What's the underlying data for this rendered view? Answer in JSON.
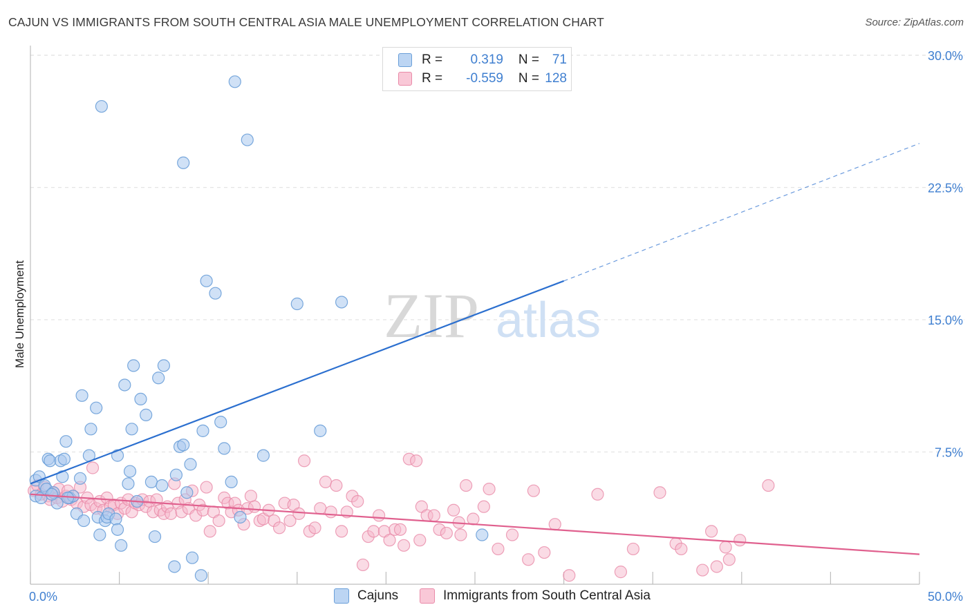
{
  "title": "CAJUN VS IMMIGRANTS FROM SOUTH CENTRAL ASIA MALE UNEMPLOYMENT CORRELATION CHART",
  "source": "Source: ZipAtlas.com",
  "watermark": {
    "zip": "ZIP",
    "atlas": "atlas"
  },
  "legend_top": {
    "rows": [
      {
        "r_label": "R =",
        "r_value": "0.319",
        "n_label": "N =",
        "n_value": "71"
      },
      {
        "r_label": "R =",
        "r_value": "-0.559",
        "n_label": "N =",
        "n_value": "128"
      }
    ]
  },
  "colors": {
    "blue_fill": "#a9c8ef",
    "blue_stroke": "#6a9fd8",
    "blue_line": "#2b6fcf",
    "pink_fill": "#f6b8cc",
    "pink_stroke": "#e98aa8",
    "pink_line": "#e0608e",
    "tick_text": "#3f7fd0",
    "grid": "#e3e3e3"
  },
  "chart_data": {
    "type": "scatter",
    "title": "CAJUN VS IMMIGRANTS FROM SOUTH CENTRAL ASIA MALE UNEMPLOYMENT CORRELATION CHART",
    "xlabel": "",
    "ylabel": "Male Unemployment",
    "xlim": [
      0,
      50
    ],
    "ylim": [
      0,
      30
    ],
    "x_ticks": [
      "0.0%",
      "50.0%"
    ],
    "y_ticks": [
      "7.5%",
      "15.0%",
      "22.5%",
      "30.0%"
    ],
    "y_tick_values": [
      7.5,
      15,
      22.5,
      30
    ],
    "grid": "horizontal dashed",
    "legend_placement": "top-center and bottom",
    "series": [
      {
        "name": "Cajuns",
        "R": 0.319,
        "N": 71,
        "trend": {
          "x0": 0,
          "y0": 5.7,
          "x1": 30,
          "y1": 17.2,
          "x_dash_end": 50,
          "y_dash_end": 25.0
        },
        "points": [
          [
            0.3,
            5.9
          ],
          [
            0.3,
            5.0
          ],
          [
            0.5,
            6.1
          ],
          [
            0.6,
            4.9
          ],
          [
            0.8,
            5.6
          ],
          [
            0.9,
            5.4
          ],
          [
            1.0,
            7.1
          ],
          [
            1.1,
            7.0
          ],
          [
            1.3,
            5.2
          ],
          [
            1.5,
            4.6
          ],
          [
            1.7,
            7.0
          ],
          [
            1.8,
            6.1
          ],
          [
            1.9,
            7.1
          ],
          [
            2.0,
            8.1
          ],
          [
            2.2,
            4.9
          ],
          [
            2.4,
            5.0
          ],
          [
            2.6,
            4.0
          ],
          [
            2.8,
            6.0
          ],
          [
            2.9,
            10.7
          ],
          [
            3.0,
            3.6
          ],
          [
            3.3,
            7.3
          ],
          [
            3.4,
            8.8
          ],
          [
            3.7,
            10.0
          ],
          [
            3.8,
            3.8
          ],
          [
            3.9,
            2.8
          ],
          [
            4.2,
            3.6
          ],
          [
            4.3,
            3.8
          ],
          [
            4.4,
            4.0
          ],
          [
            4.8,
            3.7
          ],
          [
            4.9,
            3.1
          ],
          [
            4.9,
            7.3
          ],
          [
            5.1,
            2.2
          ],
          [
            5.3,
            11.3
          ],
          [
            5.5,
            5.7
          ],
          [
            5.6,
            6.4
          ],
          [
            5.7,
            8.8
          ],
          [
            5.8,
            12.4
          ],
          [
            6.0,
            4.7
          ],
          [
            6.2,
            10.5
          ],
          [
            6.5,
            9.6
          ],
          [
            6.8,
            5.8
          ],
          [
            7.0,
            2.7
          ],
          [
            7.2,
            11.7
          ],
          [
            7.4,
            5.6
          ],
          [
            7.5,
            12.4
          ],
          [
            8.1,
            1.0
          ],
          [
            8.2,
            6.2
          ],
          [
            8.4,
            7.8
          ],
          [
            8.6,
            7.9
          ],
          [
            8.6,
            23.9
          ],
          [
            8.8,
            5.2
          ],
          [
            9.0,
            6.8
          ],
          [
            9.1,
            1.5
          ],
          [
            9.6,
            0.5
          ],
          [
            9.7,
            8.7
          ],
          [
            9.9,
            17.2
          ],
          [
            10.4,
            16.5
          ],
          [
            10.7,
            9.2
          ],
          [
            10.9,
            7.7
          ],
          [
            11.3,
            5.8
          ],
          [
            11.5,
            28.5
          ],
          [
            11.8,
            3.8
          ],
          [
            12.2,
            25.2
          ],
          [
            13.1,
            7.3
          ],
          [
            15.0,
            15.9
          ],
          [
            16.3,
            8.7
          ],
          [
            17.5,
            16.0
          ],
          [
            25.4,
            2.8
          ],
          [
            4.0,
            27.1
          ],
          [
            2.1,
            4.9
          ],
          [
            1.2,
            5.1
          ]
        ]
      },
      {
        "name": "Immigrants from South Central Asia",
        "R": -0.559,
        "N": 128,
        "trend": {
          "x0": 0,
          "y0": 5.1,
          "x1": 50,
          "y1": 1.7
        },
        "points": [
          [
            0.2,
            5.3
          ],
          [
            0.4,
            5.6
          ],
          [
            0.6,
            5.1
          ],
          [
            0.8,
            5.5
          ],
          [
            1.0,
            5.0
          ],
          [
            1.1,
            4.8
          ],
          [
            1.3,
            5.2
          ],
          [
            1.5,
            4.9
          ],
          [
            1.6,
            5.4
          ],
          [
            1.8,
            4.7
          ],
          [
            2.0,
            5.0
          ],
          [
            2.1,
            5.3
          ],
          [
            2.3,
            4.8
          ],
          [
            2.4,
            5.0
          ],
          [
            2.6,
            4.6
          ],
          [
            2.8,
            5.5
          ],
          [
            3.0,
            4.4
          ],
          [
            3.2,
            4.9
          ],
          [
            3.4,
            4.5
          ],
          [
            3.5,
            6.6
          ],
          [
            3.7,
            4.3
          ],
          [
            3.9,
            4.7
          ],
          [
            4.1,
            4.2
          ],
          [
            4.3,
            4.9
          ],
          [
            4.5,
            4.4
          ],
          [
            4.7,
            4.5
          ],
          [
            4.9,
            4.0
          ],
          [
            5.1,
            4.6
          ],
          [
            5.3,
            4.3
          ],
          [
            5.5,
            4.8
          ],
          [
            5.7,
            4.1
          ],
          [
            5.9,
            4.6
          ],
          [
            6.1,
            4.5
          ],
          [
            6.3,
            4.8
          ],
          [
            6.5,
            4.4
          ],
          [
            6.7,
            4.7
          ],
          [
            6.9,
            4.1
          ],
          [
            7.1,
            4.8
          ],
          [
            7.3,
            4.2
          ],
          [
            7.5,
            4.0
          ],
          [
            7.7,
            4.4
          ],
          [
            7.9,
            4.0
          ],
          [
            8.1,
            5.7
          ],
          [
            8.3,
            4.6
          ],
          [
            8.5,
            4.1
          ],
          [
            8.7,
            4.8
          ],
          [
            8.9,
            4.3
          ],
          [
            9.1,
            5.3
          ],
          [
            9.3,
            3.9
          ],
          [
            9.5,
            4.5
          ],
          [
            9.7,
            4.2
          ],
          [
            9.9,
            5.5
          ],
          [
            10.1,
            3.0
          ],
          [
            10.3,
            4.1
          ],
          [
            10.6,
            3.6
          ],
          [
            10.9,
            4.9
          ],
          [
            11.1,
            4.6
          ],
          [
            11.3,
            4.1
          ],
          [
            11.5,
            4.6
          ],
          [
            11.7,
            4.2
          ],
          [
            12.0,
            3.4
          ],
          [
            12.2,
            4.3
          ],
          [
            12.4,
            5.0
          ],
          [
            12.6,
            4.4
          ],
          [
            12.9,
            3.6
          ],
          [
            13.1,
            3.7
          ],
          [
            13.4,
            4.2
          ],
          [
            13.7,
            3.6
          ],
          [
            14.0,
            3.2
          ],
          [
            14.3,
            4.6
          ],
          [
            14.6,
            3.6
          ],
          [
            14.8,
            4.5
          ],
          [
            15.1,
            4.0
          ],
          [
            15.4,
            7.0
          ],
          [
            15.7,
            3.0
          ],
          [
            16.0,
            3.2
          ],
          [
            16.3,
            4.3
          ],
          [
            16.6,
            5.8
          ],
          [
            16.9,
            4.1
          ],
          [
            17.2,
            5.6
          ],
          [
            17.5,
            3.0
          ],
          [
            17.8,
            4.1
          ],
          [
            18.1,
            5.0
          ],
          [
            18.4,
            4.7
          ],
          [
            18.7,
            1.1
          ],
          [
            19.0,
            2.7
          ],
          [
            19.3,
            3.0
          ],
          [
            19.6,
            3.9
          ],
          [
            19.9,
            3.0
          ],
          [
            20.2,
            2.5
          ],
          [
            20.5,
            3.1
          ],
          [
            20.8,
            3.1
          ],
          [
            21.0,
            2.2
          ],
          [
            21.3,
            7.1
          ],
          [
            21.7,
            7.0
          ],
          [
            22.0,
            4.4
          ],
          [
            22.3,
            3.9
          ],
          [
            22.7,
            3.9
          ],
          [
            23.0,
            3.1
          ],
          [
            23.4,
            2.9
          ],
          [
            23.8,
            4.2
          ],
          [
            24.1,
            3.5
          ],
          [
            24.5,
            5.6
          ],
          [
            24.9,
            3.7
          ],
          [
            25.5,
            4.4
          ],
          [
            25.8,
            5.4
          ],
          [
            26.3,
            2.0
          ],
          [
            27.1,
            2.8
          ],
          [
            28.0,
            1.4
          ],
          [
            28.9,
            1.8
          ],
          [
            28.3,
            5.3
          ],
          [
            29.5,
            3.4
          ],
          [
            30.3,
            0.5
          ],
          [
            31.9,
            5.1
          ],
          [
            33.2,
            0.7
          ],
          [
            33.9,
            2.0
          ],
          [
            35.4,
            5.2
          ],
          [
            36.3,
            2.3
          ],
          [
            36.6,
            2.0
          ],
          [
            37.8,
            0.8
          ],
          [
            38.3,
            3.0
          ],
          [
            38.6,
            1.0
          ],
          [
            39.1,
            2.1
          ],
          [
            39.3,
            1.4
          ],
          [
            39.9,
            2.5
          ],
          [
            41.5,
            5.6
          ],
          [
            21.9,
            2.5
          ],
          [
            24.2,
            2.8
          ]
        ]
      }
    ]
  },
  "bottom_legend": {
    "items": [
      {
        "label": "Cajuns"
      },
      {
        "label": "Immigrants from South Central Asia"
      }
    ]
  }
}
